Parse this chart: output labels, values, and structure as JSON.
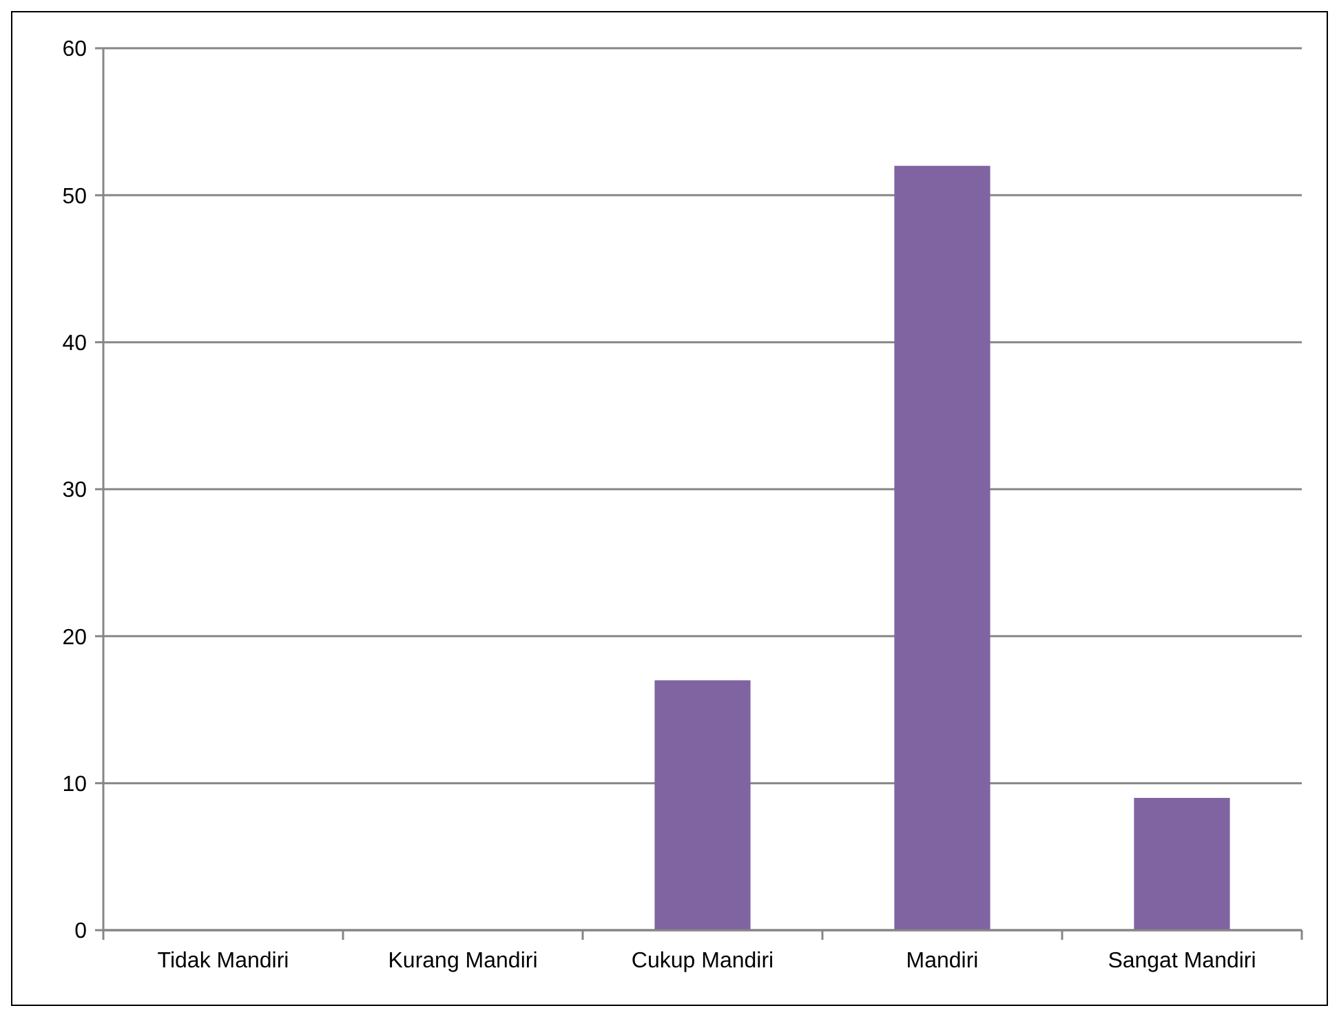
{
  "chart_data": {
    "type": "bar",
    "categories": [
      "Tidak Mandiri",
      "Kurang Mandiri",
      "Cukup Mandiri",
      "Mandiri",
      "Sangat Mandiri"
    ],
    "values": [
      0,
      0,
      17,
      52,
      9
    ],
    "color": "#8064a2",
    "ylim": [
      0,
      60
    ],
    "yticks": [
      0,
      10,
      20,
      30,
      40,
      50,
      60
    ],
    "grid": "y"
  }
}
